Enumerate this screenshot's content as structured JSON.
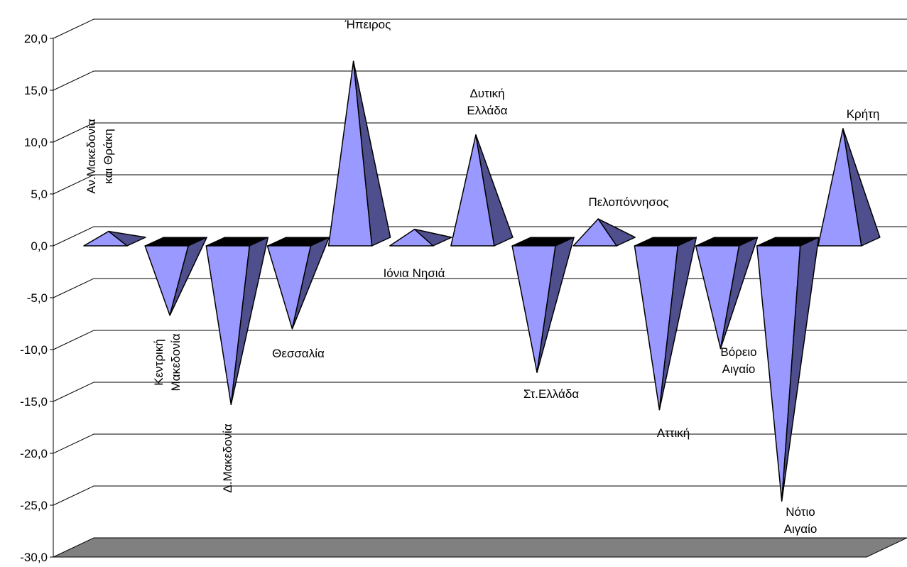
{
  "chart_data": {
    "type": "bar",
    "style": "3d-pyramid",
    "ylim": [
      -30,
      20
    ],
    "ystep": 5,
    "grid": true,
    "yticks": [
      "20,0",
      "15,0",
      "10,0",
      "5,0",
      "0,0",
      "-5,0",
      "-10,0",
      "-15,0",
      "-20,0",
      "-25,0",
      "-30,0"
    ],
    "categories": [
      [
        "Αν.Μακεδονία",
        "και Θράκη"
      ],
      [
        "Κεντρική",
        "Μακεδονία"
      ],
      [
        "Δ.Μακεδονία"
      ],
      [
        "Θεσσαλία"
      ],
      [
        "Ήπειρος"
      ],
      [
        "Ιόνια Νησιά"
      ],
      [
        "Δυτική",
        "Ελλάδα"
      ],
      [
        "Στ.Ελλάδα"
      ],
      [
        "Πελοπόννησος"
      ],
      [
        "Αττική"
      ],
      [
        "Βόρειο",
        "Αιγαίο"
      ],
      [
        "Νότιο",
        "Αιγαίο"
      ],
      [
        "Κρήτη"
      ]
    ],
    "values": [
      1.4,
      -6.7,
      -15.3,
      -8.0,
      17.8,
      1.6,
      10.7,
      -12.2,
      2.6,
      -15.8,
      -9.9,
      -24.6,
      11.3
    ],
    "colors": {
      "front": "#9999ff",
      "side": "#4f4f8e",
      "top": "#000000",
      "floor": "#808080"
    }
  }
}
